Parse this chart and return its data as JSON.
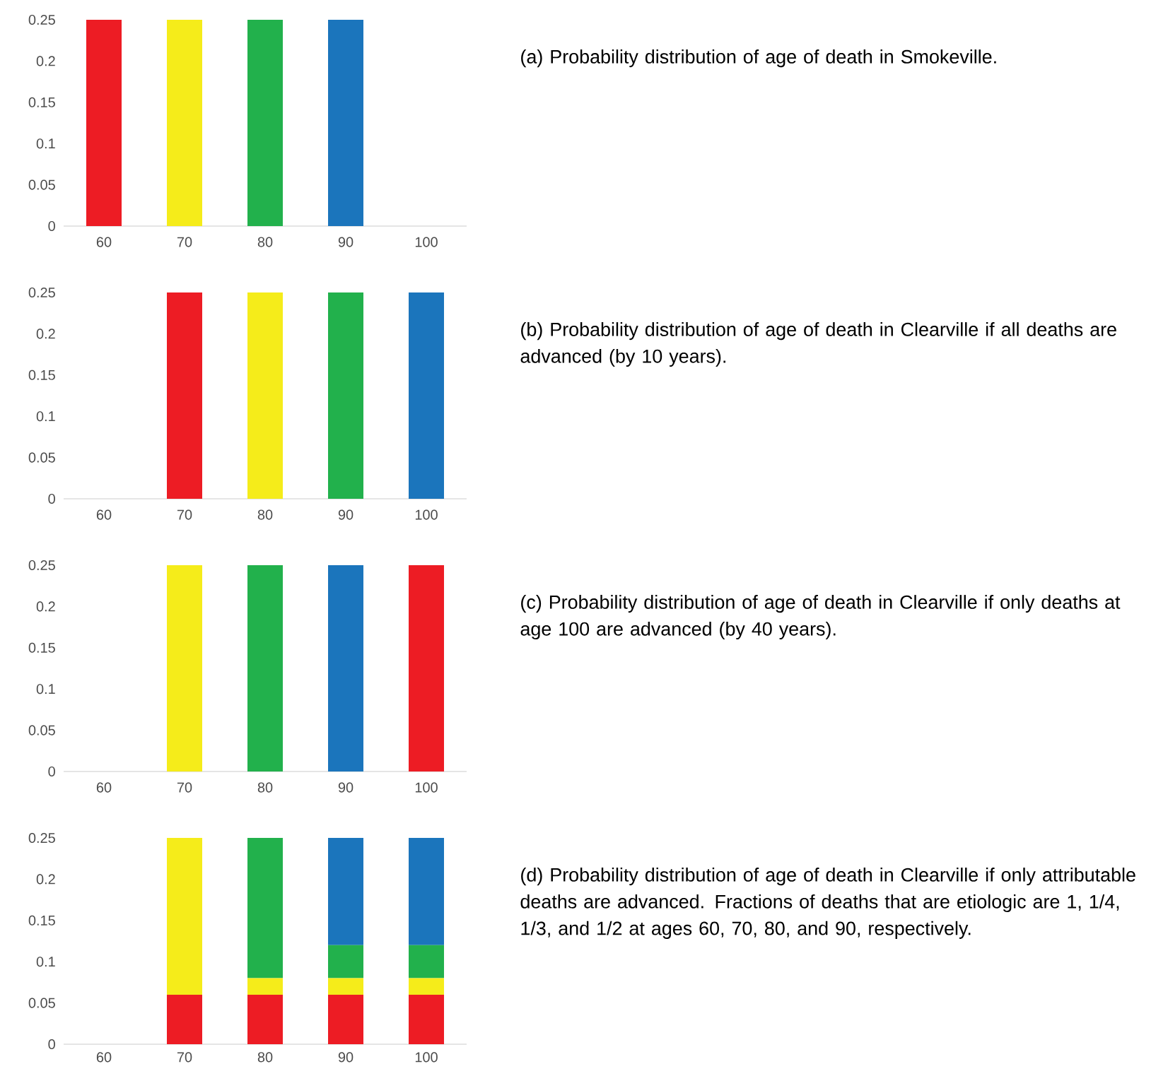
{
  "chart_data": [
    {
      "type": "bar",
      "annotations": [
        "(a) Probability distribution of age of death in Smokeville."
      ],
      "categories": [
        "60",
        "70",
        "80",
        "90",
        "100"
      ],
      "values": [
        0.25,
        0.25,
        0.25,
        0.25,
        0
      ],
      "colors": [
        "#ed1c24",
        "#f5ec1a",
        "#22b14c",
        "#1b75bc",
        "#1b75bc"
      ],
      "ylim": [
        0,
        0.25
      ],
      "yticks": [
        0,
        0.05,
        0.1,
        0.15,
        0.2,
        0.25
      ]
    },
    {
      "type": "bar",
      "annotations": [
        "(b) Probability distribution of age of death in Clearville if all deaths are advanced (by 10 years)."
      ],
      "categories": [
        "60",
        "70",
        "80",
        "90",
        "100"
      ],
      "values": [
        0,
        0.25,
        0.25,
        0.25,
        0.25
      ],
      "colors": [
        "#ed1c24",
        "#ed1c24",
        "#f5ec1a",
        "#22b14c",
        "#1b75bc"
      ],
      "ylim": [
        0,
        0.25
      ],
      "yticks": [
        0,
        0.05,
        0.1,
        0.15,
        0.2,
        0.25
      ]
    },
    {
      "type": "bar",
      "annotations": [
        "(c) Probability distribution of age of death in Clearville if only deaths at age 100 are advanced (by 40 years)."
      ],
      "categories": [
        "60",
        "70",
        "80",
        "90",
        "100"
      ],
      "values": [
        0,
        0.25,
        0.25,
        0.25,
        0.25
      ],
      "colors": [
        "#f5ec1a",
        "#f5ec1a",
        "#22b14c",
        "#1b75bc",
        "#ed1c24"
      ],
      "ylim": [
        0,
        0.25
      ],
      "yticks": [
        0,
        0.05,
        0.1,
        0.15,
        0.2,
        0.25
      ]
    },
    {
      "type": "bar",
      "stacked": true,
      "annotations": [
        "(d) Probability distribution of age of death in Clearville if only attributable deaths are advanced. Fractions of deaths that are etiologic are 1, 1/4, 1/3, and 1/2 at ages 60, 70, 80, and 90, respectively."
      ],
      "categories": [
        "60",
        "70",
        "80",
        "90",
        "100"
      ],
      "ylim": [
        0,
        0.25
      ],
      "yticks": [
        0,
        0.05,
        0.1,
        0.15,
        0.2,
        0.25
      ],
      "series": [
        {
          "color": "#ed1c24",
          "values": [
            0,
            0.06,
            0.06,
            0.06,
            0.06
          ]
        },
        {
          "color": "#f5ec1a",
          "values": [
            0,
            0.19,
            0.02,
            0.02,
            0.02
          ]
        },
        {
          "color": "#22b14c",
          "values": [
            0,
            0,
            0.17,
            0.04,
            0.04
          ]
        },
        {
          "color": "#1b75bc",
          "values": [
            0,
            0,
            0,
            0.13,
            0.13
          ]
        }
      ]
    }
  ]
}
